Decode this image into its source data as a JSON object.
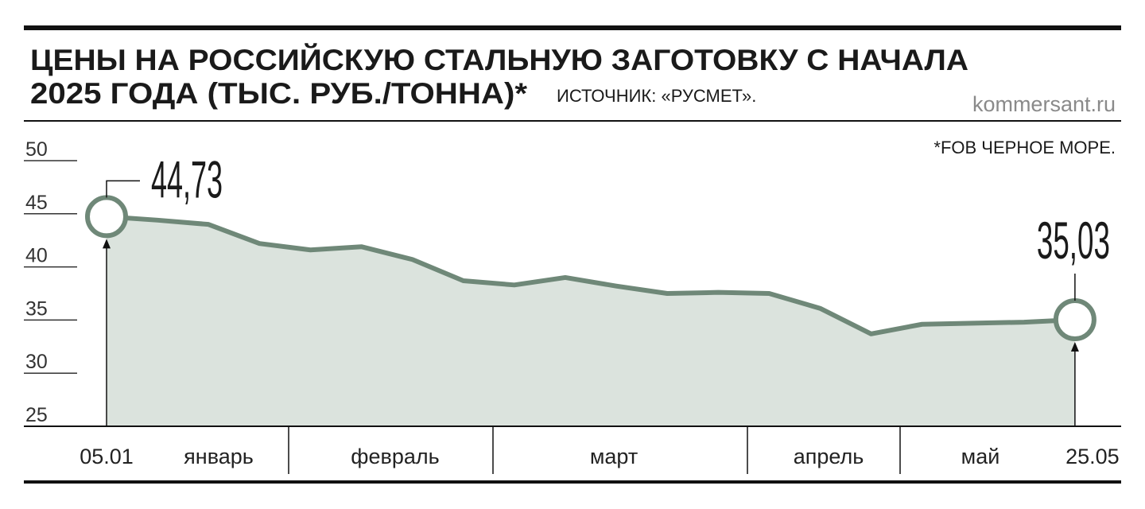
{
  "chart_data": {
    "type": "area",
    "title": [
      "ЦЕНЫ НА РОССИЙСКУЮ СТАЛЬНУЮ ЗАГОТОВКУ С НАЧАЛА",
      "2025 ГОДА (ТЫС. РУБ./ТОННА)*"
    ],
    "source": "ИСТОЧНИК: «РУСМЕТ».",
    "site": "kommersant.ru",
    "note": "*FOB ЧЕРНОЕ МОРЕ.",
    "categories": [
      "05.01",
      null,
      null,
      null,
      null,
      null,
      null,
      null,
      null,
      null,
      null,
      null,
      null,
      null,
      null,
      null,
      null,
      null,
      null,
      "25.05"
    ],
    "month_labels": [
      "январь",
      "февраль",
      "март",
      "апрель",
      "май"
    ],
    "values": [
      44.73,
      44.4,
      44.0,
      42.2,
      41.6,
      41.9,
      40.7,
      38.7,
      38.3,
      39.0,
      38.2,
      37.5,
      37.6,
      37.5,
      36.1,
      33.7,
      34.6,
      34.7,
      34.8,
      35.03
    ],
    "value_labels": [
      "44,73",
      null,
      null,
      null,
      null,
      null,
      null,
      null,
      null,
      null,
      null,
      null,
      null,
      null,
      null,
      null,
      null,
      null,
      null,
      "35,03"
    ],
    "color": "#6f8878",
    "fill_color": "#dbe3dd",
    "ylim": [
      25,
      50
    ],
    "yticks": [
      25,
      30,
      35,
      40,
      45,
      50
    ]
  }
}
